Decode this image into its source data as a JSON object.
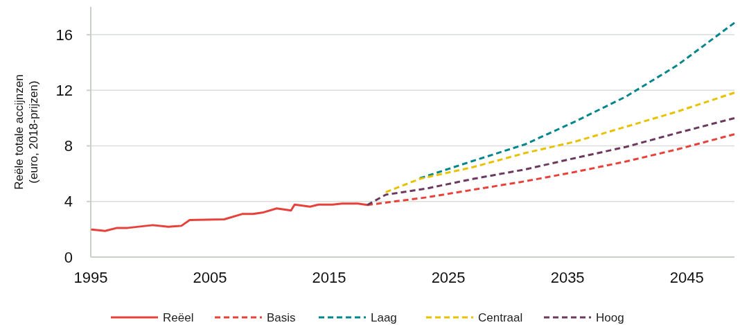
{
  "chart_data": {
    "type": "line",
    "ylabel": "Reële totale accijnzen\n(euro, 2018-prijzen)",
    "xlim": [
      1995,
      2049
    ],
    "xticks": [
      1995,
      2005,
      2015,
      2025,
      2035,
      2045
    ],
    "ylim": [
      0,
      18
    ],
    "yticks": [
      0,
      4,
      8,
      12,
      16
    ],
    "grid": "y",
    "legend": "bottom",
    "marker": "none",
    "series": [
      {
        "name": "Reëel",
        "color": "#e8413a",
        "line_style": "solid",
        "x": [
          1995.1,
          1996.2,
          1997.2,
          1998.1,
          2000.2,
          2001.5,
          2002.6,
          2003.3,
          2006.2,
          2007.7,
          2008.6,
          2009.5,
          2010.6,
          2011.8,
          2012.1,
          2013.4,
          2014.1,
          2015.3,
          2016.1,
          2017.4,
          2018.2
        ],
        "values": [
          1.98,
          1.88,
          2.1,
          2.1,
          2.3,
          2.18,
          2.25,
          2.67,
          2.72,
          3.1,
          3.1,
          3.22,
          3.5,
          3.35,
          3.78,
          3.63,
          3.78,
          3.78,
          3.85,
          3.85,
          3.75
        ]
      },
      {
        "name": "Basis",
        "color": "#e8413a",
        "line_style": "dashed",
        "x": [
          2018.2,
          2023.2,
          2027.1,
          2031.4,
          2035.6,
          2039.9,
          2044.2,
          2049
        ],
        "values": [
          3.75,
          4.3,
          4.85,
          5.45,
          6.12,
          6.88,
          7.75,
          8.84
        ]
      },
      {
        "name": "Laag",
        "color": "#00868b",
        "line_style": "dashed",
        "x": [
          2022.6,
          2027.1,
          2031.4,
          2035.6,
          2039.9,
          2044.2,
          2049
        ],
        "values": [
          5.67,
          6.93,
          8.1,
          9.74,
          11.55,
          13.8,
          16.86
        ]
      },
      {
        "name": "Centraal",
        "color": "#e8c100",
        "line_style": "dashed",
        "x": [
          2019.75,
          2022.6,
          2027.1,
          2031.4,
          2035.6,
          2039.9,
          2044.2,
          2049
        ],
        "values": [
          4.67,
          5.63,
          6.48,
          7.48,
          8.3,
          9.38,
          10.47,
          11.83
        ]
      },
      {
        "name": "Hoog",
        "color": "#6b3a5e",
        "line_style": "dashed",
        "x": [
          2018.2,
          2019.75,
          2023.2,
          2027.1,
          2031.4,
          2035.6,
          2039.9,
          2044.2,
          2049
        ],
        "values": [
          3.75,
          4.49,
          4.94,
          5.63,
          6.3,
          7.12,
          7.93,
          8.93,
          10.0
        ]
      }
    ]
  }
}
